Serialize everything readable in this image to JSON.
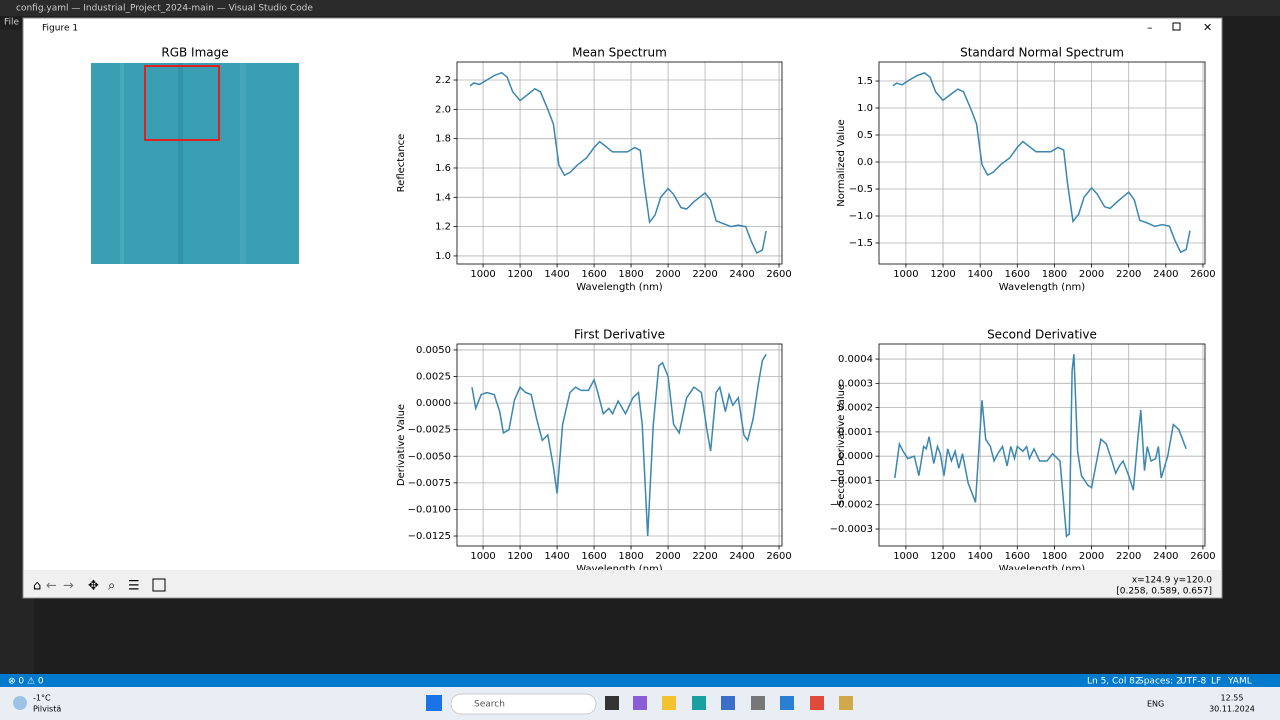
{
  "app_title": "config.yaml — Industrial_Project_2024-main — Visual Studio Code",
  "menu": "File",
  "figure_window": {
    "title": "Figure 1"
  },
  "rgb_image": {
    "title": "RGB Image"
  },
  "chart_data": [
    {
      "type": "line",
      "title": "Mean Spectrum",
      "xlabel": "Wavelength (nm)",
      "ylabel": "Reflectance",
      "grid": true,
      "xlim": [
        859,
        2616
      ],
      "xticks": [
        1000,
        1200,
        1400,
        1600,
        1800,
        2000,
        2200,
        2400,
        2600
      ],
      "ylim": [
        0.945,
        2.323
      ],
      "yticks": [
        {
          "value": 1,
          "label": "1.0"
        },
        {
          "value": 1.2,
          "label": "1.2"
        },
        {
          "value": 1.4,
          "label": "1.4"
        },
        {
          "value": 1.6,
          "label": "1.6"
        },
        {
          "value": 1.8,
          "label": "1.8"
        },
        {
          "value": 2,
          "label": "2.0"
        },
        {
          "value": 2.2,
          "label": "2.2"
        }
      ],
      "x": [
        930,
        950,
        980,
        1020,
        1060,
        1100,
        1130,
        1160,
        1200,
        1240,
        1280,
        1310,
        1350,
        1380,
        1410,
        1440,
        1470,
        1510,
        1560,
        1600,
        1630,
        1660,
        1700,
        1740,
        1780,
        1820,
        1850,
        1870,
        1900,
        1930,
        1960,
        2000,
        2030,
        2070,
        2100,
        2140,
        2200,
        2230,
        2260,
        2300,
        2340,
        2380,
        2420,
        2450,
        2480,
        2510,
        2530
      ],
      "series": [
        {
          "color": "#3a87b0",
          "values": [
            2.16,
            2.18,
            2.17,
            2.2,
            2.23,
            2.25,
            2.22,
            2.12,
            2.06,
            2.1,
            2.14,
            2.12,
            2.0,
            1.9,
            1.62,
            1.55,
            1.57,
            1.62,
            1.67,
            1.74,
            1.78,
            1.75,
            1.71,
            1.71,
            1.71,
            1.74,
            1.72,
            1.5,
            1.23,
            1.28,
            1.4,
            1.46,
            1.42,
            1.33,
            1.32,
            1.37,
            1.43,
            1.38,
            1.24,
            1.22,
            1.2,
            1.21,
            1.2,
            1.1,
            1.02,
            1.04,
            1.17
          ]
        }
      ]
    },
    {
      "type": "line",
      "title": "Standard Normal Spectrum",
      "xlabel": "Wavelength (nm)",
      "ylabel": "Normalized Value",
      "grid": true,
      "xlim": [
        855,
        2611
      ],
      "xticks": [
        1000,
        1200,
        1400,
        1600,
        1800,
        2000,
        2200,
        2400,
        2600
      ],
      "ylim": [
        -1.889,
        1.852
      ],
      "yticks": [
        {
          "value": -1.5,
          "label": "−1.5"
        },
        {
          "value": -1,
          "label": "−1.0"
        },
        {
          "value": -0.5,
          "label": "−0.5"
        },
        {
          "value": 0,
          "label": "0.0"
        },
        0.5,
        {
          "value": 1,
          "label": "1.0"
        },
        1.5
      ],
      "x": [
        930,
        950,
        980,
        1020,
        1060,
        1100,
        1130,
        1160,
        1200,
        1240,
        1280,
        1310,
        1350,
        1380,
        1410,
        1440,
        1470,
        1510,
        1560,
        1600,
        1630,
        1660,
        1700,
        1740,
        1780,
        1820,
        1850,
        1870,
        1900,
        1930,
        1960,
        2000,
        2030,
        2070,
        2100,
        2140,
        2200,
        2230,
        2260,
        2300,
        2340,
        2380,
        2420,
        2450,
        2480,
        2510,
        2530
      ],
      "series": [
        {
          "color": "#3a87b0",
          "values": [
            1.41,
            1.46,
            1.43,
            1.52,
            1.6,
            1.65,
            1.57,
            1.3,
            1.14,
            1.25,
            1.35,
            1.3,
            0.98,
            0.71,
            -0.05,
            -0.24,
            -0.19,
            -0.05,
            0.08,
            0.27,
            0.38,
            0.3,
            0.19,
            0.19,
            0.19,
            0.27,
            0.22,
            -0.38,
            -1.1,
            -0.97,
            -0.65,
            -0.48,
            -0.59,
            -0.83,
            -0.86,
            -0.73,
            -0.56,
            -0.7,
            -1.08,
            -1.13,
            -1.19,
            -1.16,
            -1.19,
            -1.46,
            -1.67,
            -1.62,
            -1.27
          ]
        }
      ]
    },
    {
      "type": "line",
      "title": "First Derivative",
      "xlabel": "Wavelength (nm)",
      "ylabel": "Derivative Value",
      "grid": true,
      "xlim": [
        859,
        2616
      ],
      "xticks": [
        1000,
        1200,
        1400,
        1600,
        1800,
        2000,
        2200,
        2400,
        2600
      ],
      "ylim": [
        -0.01344,
        0.00556
      ],
      "yticks": [
        {
          "value": -0.0125,
          "label": "−0.0125"
        },
        {
          "value": -0.01,
          "label": "−0.0100"
        },
        {
          "value": -0.0075,
          "label": "−0.0075"
        },
        {
          "value": -0.005,
          "label": "−0.0050"
        },
        {
          "value": -0.0025,
          "label": "−0.0025"
        },
        {
          "value": 0,
          "label": "0.0000"
        },
        0.0025,
        {
          "value": 0.005,
          "label": "0.0050"
        }
      ],
      "x": [
        940,
        960,
        990,
        1020,
        1060,
        1090,
        1110,
        1140,
        1170,
        1200,
        1230,
        1260,
        1290,
        1320,
        1350,
        1380,
        1400,
        1430,
        1470,
        1500,
        1530,
        1570,
        1600,
        1620,
        1650,
        1680,
        1700,
        1730,
        1770,
        1810,
        1840,
        1860,
        1890,
        1920,
        1950,
        1970,
        2000,
        2030,
        2060,
        2100,
        2140,
        2180,
        2210,
        2230,
        2260,
        2280,
        2310,
        2330,
        2350,
        2380,
        2410,
        2430,
        2460,
        2490,
        2510,
        2530
      ],
      "series": [
        {
          "color": "#3a87b0",
          "values": [
            0.0015,
            -0.0005,
            0.0008,
            0.001,
            0.0008,
            -0.0008,
            -0.0028,
            -0.0025,
            0.0003,
            0.0015,
            0.001,
            0.0008,
            -0.0015,
            -0.0035,
            -0.003,
            -0.006,
            -0.0085,
            -0.002,
            0.001,
            0.0015,
            0.0012,
            0.0012,
            0.0022,
            0.001,
            -0.001,
            -0.0005,
            -0.001,
            0.0002,
            -0.001,
            0.0005,
            0.001,
            -0.002,
            -0.0125,
            -0.002,
            0.0035,
            0.0038,
            0.0025,
            -0.002,
            -0.0028,
            0.0005,
            0.0015,
            0.001,
            -0.0025,
            -0.0045,
            0.001,
            0.0015,
            -0.0008,
            0.0008,
            -0.0002,
            0.0005,
            -0.003,
            -0.0035,
            -0.0015,
            0.002,
            0.004,
            0.0046
          ]
        }
      ]
    },
    {
      "type": "line",
      "title": "Second Derivative",
      "xlabel": "Wavelength (nm)",
      "ylabel": "Second Derivative Value",
      "grid": true,
      "xlim": [
        855,
        2611
      ],
      "xticks": [
        1000,
        1200,
        1400,
        1600,
        1800,
        2000,
        2200,
        2400,
        2600
      ],
      "ylim": [
        -0.00037,
        0.000462
      ],
      "yticks": [
        {
          "value": -0.0003,
          "label": "−0.0003"
        },
        {
          "value": -0.0002,
          "label": "−0.0002"
        },
        {
          "value": -0.0001,
          "label": "−0.0001"
        },
        {
          "value": 0,
          "label": "0.0000"
        },
        0.0001,
        0.0002,
        0.0003,
        0.0004
      ],
      "x": [
        940,
        965,
        985,
        1010,
        1045,
        1070,
        1095,
        1110,
        1125,
        1150,
        1170,
        1185,
        1205,
        1225,
        1245,
        1265,
        1285,
        1305,
        1335,
        1375,
        1410,
        1430,
        1455,
        1475,
        1495,
        1520,
        1545,
        1565,
        1585,
        1600,
        1630,
        1650,
        1665,
        1690,
        1720,
        1760,
        1790,
        1830,
        1865,
        1880,
        1895,
        1905,
        1925,
        1945,
        1980,
        2000,
        2025,
        2050,
        2080,
        2110,
        2130,
        2150,
        2170,
        2200,
        2225,
        2250,
        2265,
        2285,
        2300,
        2320,
        2345,
        2360,
        2375,
        2410,
        2440,
        2470,
        2510
      ],
      "series": [
        {
          "color": "#3a87b0",
          "values": [
            -9e-05,
            5e-05,
            2e-05,
            -1e-05,
            0,
            -8e-05,
            4e-05,
            3e-05,
            8e-05,
            -3e-05,
            4e-05,
            1e-05,
            -8e-05,
            3e-05,
            -2e-05,
            2e-05,
            -5e-05,
            1e-05,
            -0.00011,
            -0.00019,
            0.00023,
            7e-05,
            4e-05,
            -2e-05,
            1e-05,
            4e-05,
            -4e-05,
            4e-05,
            -1e-05,
            4e-05,
            2e-05,
            4e-05,
            -1e-05,
            3e-05,
            -2e-05,
            -2e-05,
            1e-05,
            -2e-05,
            -0.00033,
            -0.00032,
            0.00035,
            0.00042,
            2e-05,
            -8e-05,
            -0.00012,
            -0.00013,
            -3e-05,
            7e-05,
            5e-05,
            -2e-05,
            -7e-05,
            -4e-05,
            -2e-05,
            -8e-05,
            -0.00014,
            8e-05,
            0.00019,
            -6e-05,
            4e-05,
            -2e-05,
            -1e-05,
            4e-05,
            -9e-05,
            0,
            0.00013,
            0.00011,
            3e-05
          ]
        }
      ]
    }
  ],
  "toolbar": {
    "coords": "x=124.9 y=120.0",
    "pixel": "[0.258, 0.589, 0.657]"
  },
  "statusbar": {
    "problems": "⊗ 0 ⚠ 0",
    "position": "Ln 5, Col 82",
    "spaces": "Spaces: 2",
    "encoding": "UTF-8",
    "eol": "LF",
    "language": "YAML"
  },
  "taskbar": {
    "temperature": "-1°C",
    "weather": "Pilvistä",
    "search": "Search",
    "lang": "ENG",
    "time": "12.55",
    "date": "30.11.2024"
  }
}
